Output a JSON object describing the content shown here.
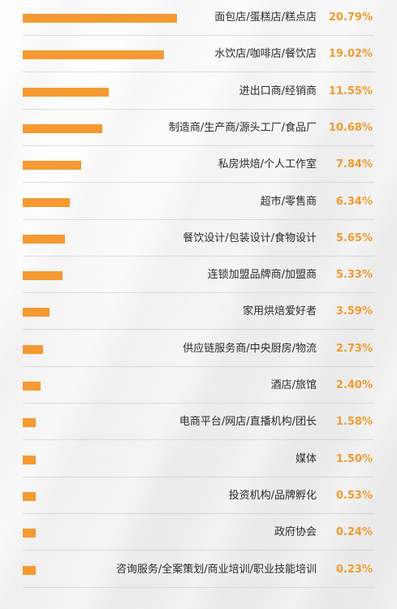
{
  "chart_data": {
    "type": "bar",
    "orientation": "horizontal",
    "bar_color": "#f59a32",
    "value_color": "#f39a2e",
    "categories": [
      "面包店/蛋糕店/糕点店",
      "水饮店/咖啡店/餐饮店",
      "进出口商/经销商",
      "制造商/生产商/源头工厂/食品厂",
      "私房烘焙/个人工作室",
      "超市/零售商",
      "餐饮设计/包装设计/食物设计",
      "连锁加盟品牌商/加盟商",
      "家用烘焙爱好者",
      "供应链服务商/中央厨房/物流",
      "酒店/旅馆",
      "电商平台/网店/直播机构/团长",
      "媒体",
      "投资机构/品牌孵化",
      "政府协会",
      "咨询服务/全案策划/商业培训/职业技能培训"
    ],
    "values": [
      20.79,
      19.02,
      11.55,
      10.68,
      7.84,
      6.34,
      5.65,
      5.33,
      3.59,
      2.73,
      2.4,
      1.58,
      1.5,
      0.53,
      0.24,
      0.23
    ],
    "value_labels": [
      "20.79%",
      "19.02%",
      "11.55%",
      "10.68%",
      "7.84%",
      "6.34%",
      "5.65%",
      "5.33%",
      "3.59%",
      "2.73%",
      "2.40%",
      "1.58%",
      "1.50%",
      "0.53%",
      "0.24%",
      "0.23%"
    ]
  }
}
